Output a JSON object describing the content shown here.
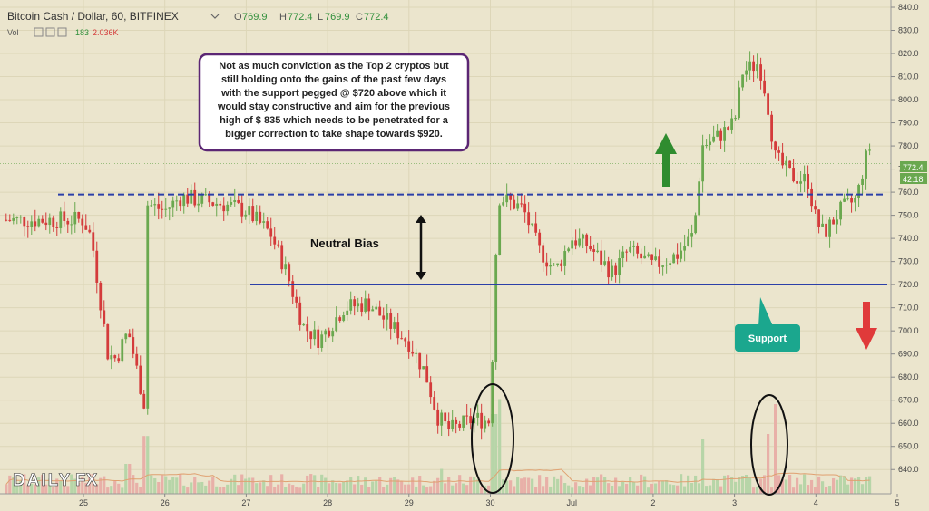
{
  "header": {
    "symbol": "Bitcoin Cash / Dollar, 60, BITFINEX",
    "ohlc": [
      {
        "k": "O",
        "v": "769.9"
      },
      {
        "k": "H",
        "v": "772.4"
      },
      {
        "k": "L",
        "v": "769.9"
      },
      {
        "k": "C",
        "v": "772.4"
      }
    ],
    "vol_label": "Vol",
    "vol_a": "183",
    "vol_b": "2.036K"
  },
  "price_tag": {
    "value": "772.4",
    "countdown": "42:18"
  },
  "annotations": {
    "commentary": [
      "Not as much conviction as the Top 2 cryptos but",
      "still holding onto the gains of the past few days",
      "with the support pegged @ $720 above which it",
      "would stay constructive and aim for the previous",
      "high of $ 835 which needs to be penetrated for a",
      "bigger correction to take shape towards $920."
    ],
    "neutral": "Neutral Bias",
    "support": "Support"
  },
  "logo": {
    "text_a": "DAILY",
    "text_b": "FX"
  },
  "colors": {
    "up": "#6aa84f",
    "down": "#d43b3b",
    "resistance": "#2b3fa8",
    "support_box": "#1ba78e",
    "commentary_border": "#5b2674"
  },
  "chart_data": {
    "type": "candlestick",
    "symbol": "Bitcoin Cash / Dollar",
    "interval": "60",
    "exchange": "BITFINEX",
    "ylim": [
      635,
      840
    ],
    "y_ticks": [
      640,
      650,
      660,
      670,
      680,
      690,
      700,
      710,
      720,
      730,
      740,
      750,
      760,
      770,
      780,
      790,
      800,
      810,
      820,
      830,
      840
    ],
    "x_ticks": [
      "25",
      "26",
      "27",
      "28",
      "29",
      "30",
      "Jul",
      "2",
      "3",
      "4",
      "5"
    ],
    "horizontal_lines": [
      {
        "label": "resistance",
        "value": 759,
        "style": "dashed"
      },
      {
        "label": "Support",
        "value": 720,
        "style": "solid"
      }
    ],
    "price_path": [
      {
        "x": 0.0,
        "y": 748
      },
      {
        "x": 0.1,
        "y": 740
      },
      {
        "x": 0.2,
        "y": 715
      },
      {
        "x": 0.3,
        "y": 690
      },
      {
        "x": 0.4,
        "y": 688
      },
      {
        "x": 0.55,
        "y": 700
      },
      {
        "x": 0.75,
        "y": 668
      },
      {
        "x": 0.77,
        "y": 755
      },
      {
        "x": 1.0,
        "y": 752
      },
      {
        "x": 1.2,
        "y": 758
      },
      {
        "x": 1.5,
        "y": 756
      },
      {
        "x": 1.7,
        "y": 755
      },
      {
        "x": 2.0,
        "y": 752
      },
      {
        "x": 2.3,
        "y": 742
      },
      {
        "x": 2.5,
        "y": 725
      },
      {
        "x": 2.7,
        "y": 702
      },
      {
        "x": 2.9,
        "y": 696
      },
      {
        "x": 3.2,
        "y": 710
      },
      {
        "x": 3.5,
        "y": 712
      },
      {
        "x": 3.7,
        "y": 705
      },
      {
        "x": 4.0,
        "y": 695
      },
      {
        "x": 4.2,
        "y": 682
      },
      {
        "x": 4.35,
        "y": 663
      },
      {
        "x": 4.5,
        "y": 657
      },
      {
        "x": 4.8,
        "y": 662
      },
      {
        "x": 5.0,
        "y": 661
      },
      {
        "x": 5.05,
        "y": 720
      },
      {
        "x": 5.1,
        "y": 758
      },
      {
        "x": 5.4,
        "y": 753
      },
      {
        "x": 5.6,
        "y": 735
      },
      {
        "x": 5.8,
        "y": 726
      },
      {
        "x": 6.0,
        "y": 740
      },
      {
        "x": 6.2,
        "y": 737
      },
      {
        "x": 6.5,
        "y": 725
      },
      {
        "x": 6.7,
        "y": 735
      },
      {
        "x": 7.0,
        "y": 728
      },
      {
        "x": 7.3,
        "y": 733
      },
      {
        "x": 7.5,
        "y": 742
      },
      {
        "x": 7.6,
        "y": 780
      },
      {
        "x": 7.8,
        "y": 784
      },
      {
        "x": 8.0,
        "y": 790
      },
      {
        "x": 8.1,
        "y": 812
      },
      {
        "x": 8.3,
        "y": 816
      },
      {
        "x": 8.4,
        "y": 800
      },
      {
        "x": 8.5,
        "y": 775
      },
      {
        "x": 8.7,
        "y": 767
      },
      {
        "x": 8.9,
        "y": 765
      },
      {
        "x": 9.0,
        "y": 748
      },
      {
        "x": 9.1,
        "y": 742
      },
      {
        "x": 9.3,
        "y": 752
      },
      {
        "x": 9.5,
        "y": 757
      },
      {
        "x": 9.6,
        "y": 773
      },
      {
        "x": 9.75,
        "y": 788
      },
      {
        "x": 9.85,
        "y": 768
      },
      {
        "x": 10.0,
        "y": 771
      }
    ],
    "volume_spikes": [
      {
        "x": 0.1,
        "v": 20
      },
      {
        "x": 0.55,
        "v": 30
      },
      {
        "x": 0.76,
        "v": 58
      },
      {
        "x": 2.0,
        "v": 15
      },
      {
        "x": 4.4,
        "v": 25
      },
      {
        "x": 5.05,
        "v": 80
      },
      {
        "x": 5.1,
        "v": 95
      },
      {
        "x": 7.6,
        "v": 55
      },
      {
        "x": 8.4,
        "v": 60
      },
      {
        "x": 8.5,
        "v": 90
      },
      {
        "x": 9.8,
        "v": 40
      }
    ]
  }
}
